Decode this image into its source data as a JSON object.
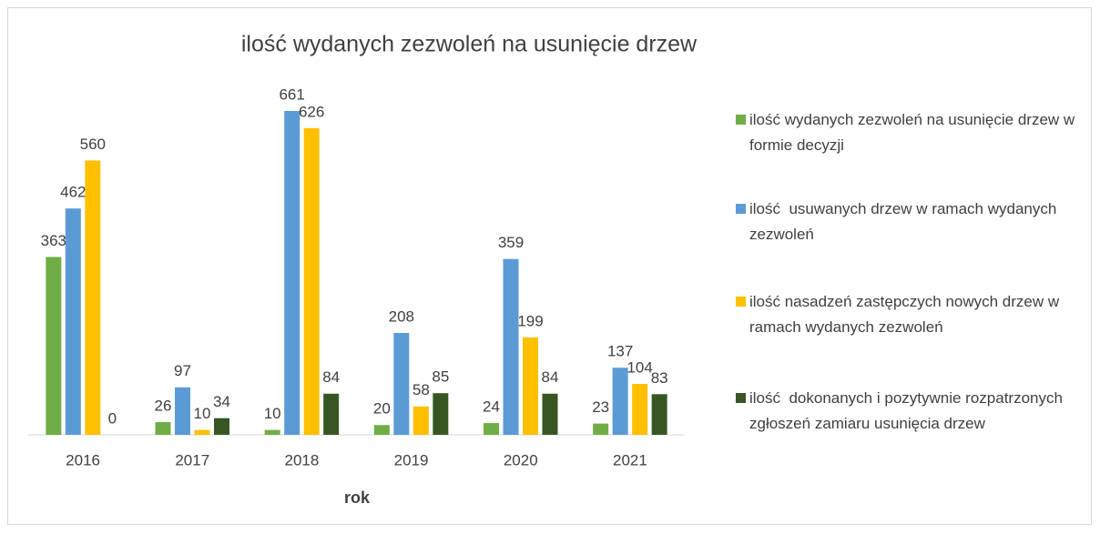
{
  "chart_data": {
    "type": "bar",
    "title": "ilość wydanych zezwoleń na usunięcie drzew",
    "x_label": "rok",
    "categories": [
      "2016",
      "2017",
      "2018",
      "2019",
      "2020",
      "2021"
    ],
    "ylim": [
      0,
      700
    ],
    "legend": "right",
    "series": [
      {
        "name": "ilość wydanych zezwoleń na usunięcie drzew w formie decyzji",
        "color": "#70ad47",
        "values": [
          363,
          26,
          10,
          20,
          24,
          23
        ]
      },
      {
        "name": "ilość  usuwanych drzew w ramach wydanych zezwoleń",
        "color": "#5b9bd5",
        "values": [
          462,
          97,
          661,
          208,
          359,
          137
        ]
      },
      {
        "name": "ilość nasadzeń zastępczych nowych drzew w ramach wydanych zezwoleń",
        "color": "#ffc000",
        "values": [
          560,
          10,
          626,
          58,
          199,
          104
        ]
      },
      {
        "name": "ilość  dokonanych i pozytywnie rozpatrzonych zgłoszeń zamiaru usunięcia drzew",
        "color": "#375623",
        "values": [
          0,
          34,
          84,
          85,
          84,
          83
        ]
      }
    ]
  }
}
